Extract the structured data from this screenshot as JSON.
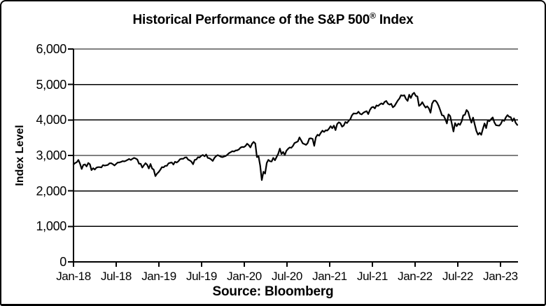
{
  "panel": {
    "background_color": "#ffffff",
    "border_color": "#000000",
    "line_color": "#000000"
  },
  "title_parts": {
    "pre": "Historical Performance of the S&P 500",
    "reg": "®",
    "post": " Index"
  },
  "source_caption": "Source: Bloomberg",
  "chart_data": {
    "type": "line",
    "title": "Historical Performance of the S&P 500® Index",
    "xlabel": "",
    "ylabel": "Index Level",
    "source": "Source: Bloomberg",
    "ylim": [
      0,
      6000
    ],
    "grid": "horizontal",
    "legend": "none",
    "y_ticks": [
      0,
      1000,
      2000,
      3000,
      4000,
      5000,
      6000
    ],
    "y_tick_labels": [
      "0",
      "1,000",
      "2,000",
      "3,000",
      "4,000",
      "5,000",
      "6,000"
    ],
    "x_tick_labels": [
      "Jan-18",
      "Jul-18",
      "Jan-19",
      "Jul-19",
      "Jan-20",
      "Jul-20",
      "Jan-21",
      "Jul-21",
      "Jan-22",
      "Jul-22",
      "Jan-23"
    ],
    "x_start_label": "Jan-18",
    "x_unit": "weekly observations from Jan-2018",
    "series": [
      {
        "name": "S&P 500 Index Level",
        "values": [
          2743,
          2786,
          2810,
          2873,
          2762,
          2620,
          2732,
          2747,
          2691,
          2787,
          2752,
          2588,
          2641,
          2604,
          2656,
          2670,
          2670,
          2663,
          2728,
          2713,
          2721,
          2734,
          2779,
          2780,
          2755,
          2718,
          2760,
          2801,
          2802,
          2819,
          2840,
          2833,
          2850,
          2875,
          2901,
          2872,
          2905,
          2930,
          2914,
          2886,
          2767,
          2768,
          2659,
          2723,
          2781,
          2736,
          2633,
          2760,
          2633,
          2600,
          2417,
          2486,
          2532,
          2596,
          2671,
          2665,
          2707,
          2708,
          2776,
          2793,
          2803,
          2743,
          2822,
          2801,
          2834,
          2893,
          2907,
          2905,
          2940,
          2946,
          2881,
          2860,
          2826,
          2752,
          2873,
          2887,
          2950,
          2942,
          2990,
          3014,
          2977,
          3026,
          2932,
          2919,
          2889,
          2847,
          2926,
          2979,
          3007,
          2992,
          2962,
          2952,
          2970,
          2986,
          3023,
          3067,
          3093,
          3120,
          3110,
          3141,
          3146,
          3169,
          3221,
          3240,
          3235,
          3265,
          3330,
          3295,
          3226,
          3328,
          3380,
          3338,
          2954,
          2972,
          2711,
          2305,
          2541,
          2489,
          2790,
          2875,
          2837,
          2831,
          2930,
          2864,
          2955,
          3044,
          3194,
          3041,
          3098,
          3009,
          3130,
          3185,
          3225,
          3216,
          3271,
          3351,
          3373,
          3397,
          3508,
          3427,
          3341,
          3319,
          3298,
          3348,
          3477,
          3484,
          3465,
          3270,
          3509,
          3585,
          3558,
          3638,
          3699,
          3663,
          3709,
          3703,
          3756,
          3825,
          3768,
          3841,
          3714,
          3887,
          3935,
          3907,
          3811,
          3842,
          3943,
          3913,
          3975,
          4020,
          4129,
          4185,
          4180,
          4181,
          4233,
          4174,
          4156,
          4204,
          4230,
          4247,
          4166,
          4281,
          4352,
          4370,
          4327,
          4412,
          4395,
          4437,
          4468,
          4442,
          4509,
          4535,
          4459,
          4433,
          4455,
          4357,
          4391,
          4471,
          4545,
          4605,
          4698,
          4683,
          4698,
          4595,
          4538,
          4712,
          4621,
          4726,
          4766,
          4677,
          4663,
          4398,
          4432,
          4501,
          4419,
          4349,
          4385,
          4329,
          4204,
          4463,
          4543,
          4546,
          4488,
          4393,
          4272,
          4132,
          4123,
          4024,
          3901,
          4158,
          4109,
          3901,
          3675,
          3912,
          3825,
          3899,
          3863,
          3962,
          4130,
          4145,
          4280,
          4228,
          4058,
          3924,
          4067,
          3873,
          3693,
          3586,
          3640,
          3583,
          3753,
          3901,
          3771,
          3993,
          3965,
          4026,
          4072,
          3934,
          3852,
          3845,
          3840,
          3895,
          3999,
          3973,
          4071,
          4136,
          4090,
          4079,
          3970,
          4046,
          3917,
          3861
        ]
      }
    ]
  }
}
